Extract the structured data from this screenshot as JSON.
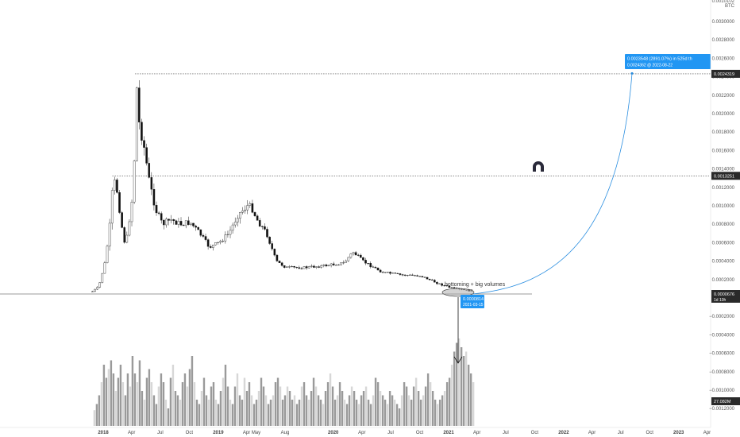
{
  "chart_data": {
    "type": "candlestick",
    "price_unit": "BTC",
    "y_ticks": [
      "0.0030000",
      "0.0028000",
      "0.0026000",
      "0.0024000",
      "0.0022000",
      "0.0020000",
      "0.0018000",
      "0.0016000",
      "0.0014000",
      "0.0012000",
      "0.0010000",
      "0.0008000",
      "0.0006000",
      "0.0004000",
      "0.0002000",
      "−0.0002000",
      "−0.0004000",
      "−0.0006000",
      "−0.0008000",
      "−0.0010000",
      "−0.0012000"
    ],
    "y_tick_values": [
      0.003,
      0.0028,
      0.0026,
      0.0024,
      0.0022,
      0.002,
      0.0018,
      0.0016,
      0.0014,
      0.0012,
      0.001,
      0.0008,
      0.0006,
      0.0004,
      0.0002,
      -0.0002,
      -0.0004,
      -0.0006,
      -0.0008,
      -0.001,
      -0.0012
    ],
    "x_ticks": [
      "2018",
      "Apr",
      "Jul",
      "Oct",
      "2019",
      "Apr",
      "May",
      "Aug",
      "2020",
      "Apr",
      "Jul",
      "Oct",
      "2021",
      "Apr",
      "Jul",
      "Oct",
      "2022",
      "Apr",
      "Jul",
      "Oct",
      "2023",
      "Apr"
    ],
    "x_tick_dates": [
      "2018-01-01",
      "2018-04-01",
      "2018-07-01",
      "2018-10-01",
      "2019-01-01",
      "2019-04-01",
      "2019-05-01",
      "2019-08-01",
      "2020-01-01",
      "2020-04-01",
      "2020-07-01",
      "2020-10-01",
      "2021-01-01",
      "2021-04-01",
      "2021-07-01",
      "2021-10-01",
      "2022-01-01",
      "2022-04-01",
      "2022-07-01",
      "2022-10-01",
      "2023-01-01",
      "2023-04-01"
    ],
    "price_path": [
      [
        "2017-11-25",
        7e-05
      ],
      [
        "2017-12-15",
        0.00012
      ],
      [
        "2018-01-05",
        0.0004
      ],
      [
        "2018-01-20",
        0.00082
      ],
      [
        "2018-01-30",
        0.0013
      ],
      [
        "2018-02-12",
        0.00115
      ],
      [
        "2018-02-25",
        0.0008
      ],
      [
        "2018-03-10",
        0.00055
      ],
      [
        "2018-03-20",
        0.0008
      ],
      [
        "2018-04-05",
        0.0012
      ],
      [
        "2018-04-12",
        0.0024
      ],
      [
        "2018-04-22",
        0.0019
      ],
      [
        "2018-05-05",
        0.0017
      ],
      [
        "2018-05-25",
        0.00125
      ],
      [
        "2018-06-15",
        0.00095
      ],
      [
        "2018-07-05",
        0.0008
      ],
      [
        "2018-08-01",
        0.00085
      ],
      [
        "2018-09-01",
        0.0008
      ],
      [
        "2018-10-01",
        0.00082
      ],
      [
        "2018-11-01",
        0.0007
      ],
      [
        "2018-12-01",
        0.00055
      ],
      [
        "2019-01-01",
        0.0006
      ],
      [
        "2019-02-01",
        0.0007
      ],
      [
        "2019-03-01",
        0.0009
      ],
      [
        "2019-04-01",
        0.001
      ],
      [
        "2019-04-15",
        0.00098
      ],
      [
        "2019-05-01",
        0.00085
      ],
      [
        "2019-06-01",
        0.0007
      ],
      [
        "2019-07-01",
        0.0004
      ],
      [
        "2019-08-01",
        0.00033
      ],
      [
        "2019-10-01",
        0.00033
      ],
      [
        "2019-12-01",
        0.00035
      ],
      [
        "2020-02-01",
        0.00038
      ],
      [
        "2020-03-01",
        0.0005
      ],
      [
        "2020-04-01",
        0.0004
      ],
      [
        "2020-06-01",
        0.00028
      ],
      [
        "2020-08-01",
        0.00025
      ],
      [
        "2020-10-01",
        0.00024
      ],
      [
        "2020-12-01",
        0.00015
      ],
      [
        "2021-01-15",
        0.0001
      ],
      [
        "2021-03-01",
        8e-05
      ],
      [
        "2021-03-15",
        8.14e-05
      ]
    ],
    "volume_relative": [
      0.18,
      0.25,
      0.35,
      0.5,
      0.7,
      0.55,
      0.65,
      0.75,
      0.6,
      0.4,
      0.55,
      0.7,
      0.5,
      0.35,
      0.6,
      0.45,
      0.8,
      0.6,
      0.5,
      0.75,
      0.4,
      0.3,
      0.55,
      0.65,
      0.5,
      0.35,
      0.25,
      0.45,
      0.6,
      0.5,
      0.3,
      0.2,
      0.55,
      0.7,
      0.4,
      0.35,
      0.3,
      0.5,
      0.6,
      0.45,
      0.65,
      0.8,
      0.5,
      0.3,
      0.25,
      0.4,
      0.55,
      0.35,
      0.3,
      0.45,
      0.5,
      0.3,
      0.25,
      0.4,
      0.55,
      0.7,
      0.45,
      0.3,
      0.25,
      0.45,
      0.6,
      0.35,
      0.3,
      0.55,
      0.4,
      0.5,
      0.35,
      0.25,
      0.3,
      0.4,
      0.55,
      0.45,
      0.35,
      0.25,
      0.3,
      0.35,
      0.5,
      0.55,
      0.45,
      0.3,
      0.35,
      0.45,
      0.4,
      0.3,
      0.35,
      0.25,
      0.3,
      0.45,
      0.5,
      0.35,
      0.3,
      0.4,
      0.55,
      0.45,
      0.35,
      0.3,
      0.25,
      0.4,
      0.5,
      0.6,
      0.45,
      0.3,
      0.35,
      0.5,
      0.4,
      0.3,
      0.25,
      0.35,
      0.45,
      0.4,
      0.3,
      0.25,
      0.35,
      0.4,
      0.45,
      0.3,
      0.25,
      0.35,
      0.55,
      0.5,
      0.4,
      0.35,
      0.3,
      0.25,
      0.4,
      0.35,
      0.3,
      0.25,
      0.2,
      0.35,
      0.5,
      0.45,
      0.35,
      0.3,
      0.45,
      0.55,
      0.4,
      0.3,
      0.35,
      0.45,
      0.6,
      0.5,
      0.4,
      0.3,
      0.25,
      0.3,
      0.35,
      0.4,
      0.5,
      0.55,
      0.7,
      0.85,
      0.95,
      1.0,
      0.9,
      0.8,
      0.85,
      0.7,
      0.6,
      0.5
    ],
    "levels": [
      0.0024319,
      0.0013251
    ],
    "labels": {
      "level_top": "0.0024319",
      "level_mid": "0.0013251",
      "current_price": "0.0000676",
      "current_sub": "1d 10h",
      "volume_value": "27.082M",
      "low_price": "0.0000814",
      "low_date": "2021-03-15",
      "target_line1": "0.0023548 (2891.07%) in 525d th",
      "target_line2": "0.0024362 @ 2022-08-22",
      "note": "bottoming + big volumes",
      "currency": "BTC",
      "currency_top": "0.0010102"
    }
  }
}
